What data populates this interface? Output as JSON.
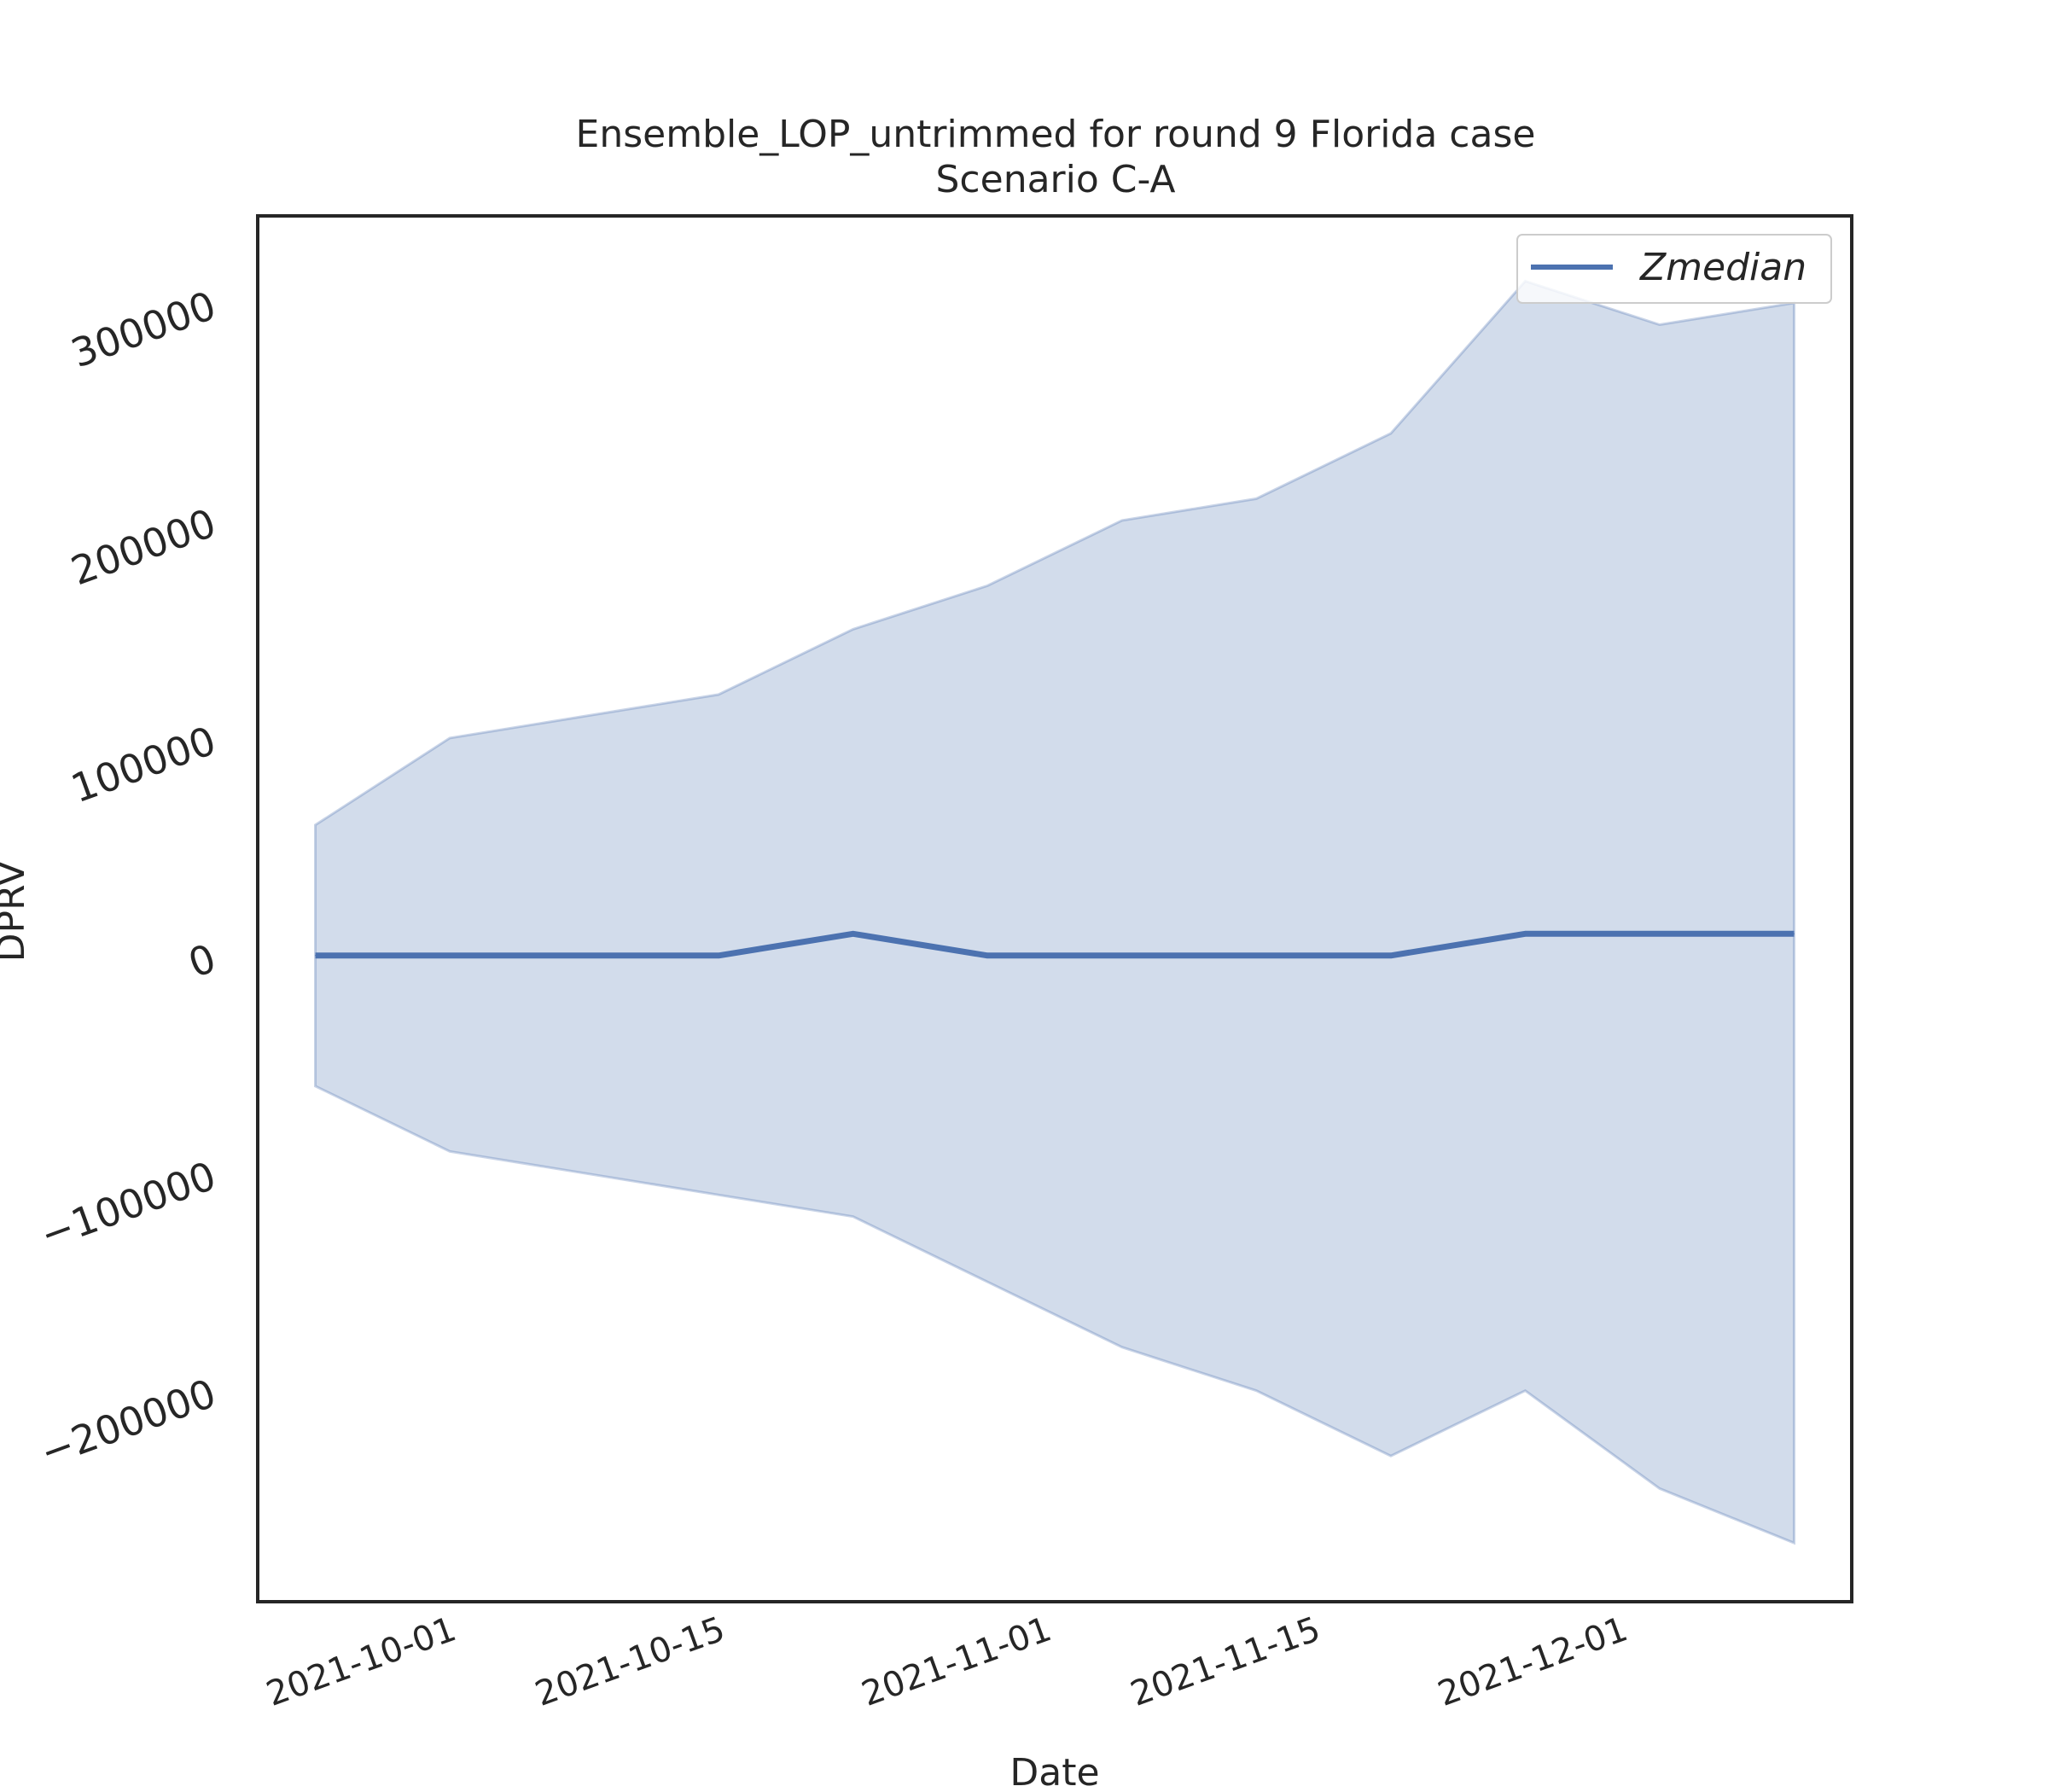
{
  "chart_data": {
    "type": "line",
    "title": "Ensemble_LOP_untrimmed for round 9 Florida case",
    "subtitle": "Scenario C-A",
    "xlabel": "Date",
    "ylabel": "DPRV",
    "x": [
      "2021-09-24",
      "2021-10-01",
      "2021-10-08",
      "2021-10-15",
      "2021-10-22",
      "2021-10-29",
      "2021-11-05",
      "2021-11-12",
      "2021-11-19",
      "2021-11-26",
      "2021-12-03",
      "2021-12-10"
    ],
    "series": [
      {
        "name": "Zmedian",
        "values": [
          0,
          0,
          0,
          0,
          10000,
          0,
          0,
          0,
          0,
          10000,
          10000,
          10000
        ],
        "color": "#4c72b0"
      }
    ],
    "band": {
      "upper": [
        60000,
        100000,
        110000,
        120000,
        150000,
        170000,
        200000,
        210000,
        240000,
        310000,
        290000,
        300000
      ],
      "lower": [
        -60000,
        -90000,
        -100000,
        -110000,
        -120000,
        -150000,
        -180000,
        -200000,
        -230000,
        -200000,
        -245000,
        -270000
      ],
      "color": "#4c72b0",
      "opacity": 0.25
    },
    "xticks": [
      "2021-10-01",
      "2021-10-15",
      "2021-11-01",
      "2021-11-15",
      "2021-12-01"
    ],
    "yticks": [
      -200000,
      -100000,
      0,
      100000,
      200000,
      300000
    ],
    "ytick_labels": [
      "−200000",
      "−100000",
      "0",
      "100000",
      "200000",
      "300000"
    ],
    "xlim": [
      "2021-09-21",
      "2021-12-13"
    ],
    "ylim": [
      -297000,
      340000
    ],
    "legend": {
      "position": "top-right",
      "entries": [
        "Zmedian"
      ]
    },
    "grid": false
  }
}
